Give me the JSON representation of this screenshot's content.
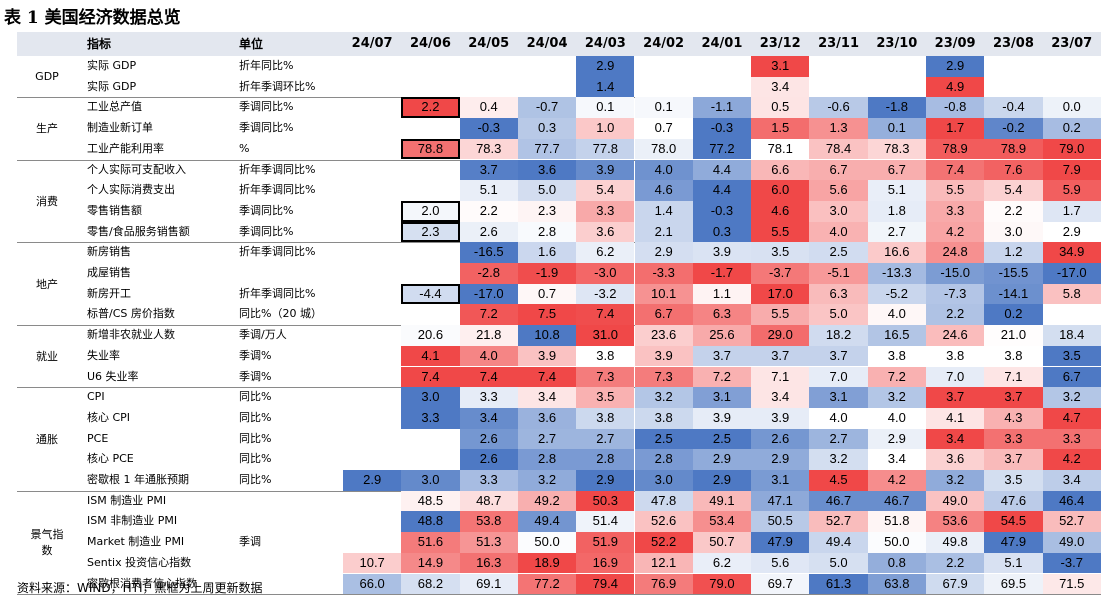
{
  "title": "表 1 美国经济数据总览",
  "header": {
    "indicator": "指标",
    "unit": "单位"
  },
  "periods": [
    "24/07",
    "24/06",
    "24/05",
    "24/04",
    "24/03",
    "24/02",
    "24/01",
    "23/12",
    "23/11",
    "23/10",
    "23/09",
    "23/08",
    "23/07"
  ],
  "source": "资料来源：WIND，HTI，黑框为上周更新数据",
  "groups": [
    {
      "label": "GDP",
      "rows": [
        {
          "name": "实际 GDP",
          "unit": "折年同比%",
          "values": [
            null,
            null,
            null,
            null,
            "2.9",
            null,
            null,
            "3.1",
            null,
            null,
            "2.9",
            null,
            null
          ]
        },
        {
          "name": "实际 GDP",
          "unit": "折年季调环比%",
          "values": [
            null,
            null,
            null,
            null,
            "1.4",
            null,
            null,
            "3.4",
            null,
            null,
            "4.9",
            null,
            null
          ]
        }
      ]
    },
    {
      "label": "生产",
      "rows": [
        {
          "name": "工业总产值",
          "unit": "季调同比%",
          "values": [
            null,
            "2.2",
            "0.4",
            "-0.7",
            "0.1",
            "0.1",
            "-1.1",
            "0.5",
            "-0.6",
            "-1.8",
            "-0.8",
            "-0.4",
            "0.0"
          ],
          "boxed": 1
        },
        {
          "name": "制造业新订单",
          "unit": "季调同比%",
          "values": [
            null,
            null,
            "-0.3",
            "0.3",
            "1.0",
            "0.7",
            "-0.3",
            "1.5",
            "1.3",
            "0.1",
            "1.7",
            "-0.2",
            "0.2"
          ]
        },
        {
          "name": "工业产能利用率",
          "unit": "%",
          "values": [
            null,
            "78.8",
            "78.3",
            "77.7",
            "77.8",
            "78.0",
            "77.2",
            "78.1",
            "78.4",
            "78.3",
            "78.9",
            "78.9",
            "79.0"
          ],
          "boxed": 1
        }
      ]
    },
    {
      "label": "消费",
      "rows": [
        {
          "name": "个人实际可支配收入",
          "unit": "折年季调同比%",
          "values": [
            null,
            null,
            "3.7",
            "3.6",
            "3.9",
            "4.0",
            "4.4",
            "6.6",
            "6.7",
            "6.7",
            "7.4",
            "7.6",
            "7.9"
          ]
        },
        {
          "name": "个人实际消费支出",
          "unit": "折年季调同比%",
          "values": [
            null,
            null,
            "5.1",
            "5.0",
            "5.4",
            "4.6",
            "4.4",
            "6.0",
            "5.6",
            "5.1",
            "5.5",
            "5.4",
            "5.9"
          ]
        },
        {
          "name": "零售销售额",
          "unit": "季调同比%",
          "values": [
            null,
            "2.0",
            "2.2",
            "2.3",
            "3.3",
            "1.4",
            "-0.3",
            "4.6",
            "3.0",
            "1.8",
            "3.3",
            "2.2",
            "1.7"
          ],
          "boxed": 1
        },
        {
          "name": "零售/食品服务销售额",
          "unit": "季调同比%",
          "values": [
            null,
            "2.3",
            "2.6",
            "2.8",
            "3.6",
            "2.1",
            "0.3",
            "5.5",
            "4.0",
            "2.7",
            "4.2",
            "3.0",
            "2.9"
          ],
          "boxed": 1
        }
      ]
    },
    {
      "label": "地产",
      "rows": [
        {
          "name": "新房销售",
          "unit": "折年季调同比%",
          "values": [
            null,
            null,
            "-16.5",
            "1.6",
            "6.2",
            "2.9",
            "3.9",
            "3.5",
            "2.5",
            "16.6",
            "24.8",
            "1.2",
            "34.9"
          ]
        },
        {
          "name": "成屋销售",
          "unit": "",
          "values": [
            null,
            null,
            "-2.8",
            "-1.9",
            "-3.0",
            "-3.3",
            "-1.7",
            "-3.7",
            "-5.1",
            "-13.3",
            "-15.0",
            "-15.5",
            "-17.0"
          ]
        },
        {
          "name": "新房开工",
          "unit": "折年季调同比%",
          "values": [
            null,
            "-4.4",
            "-17.0",
            "0.7",
            "-3.2",
            "10.1",
            "1.1",
            "17.0",
            "6.3",
            "-5.2",
            "-7.3",
            "-14.1",
            "5.8"
          ],
          "boxed": 1
        },
        {
          "name": "标普/CS 房价指数",
          "unit": "同比%（20 城）",
          "values": [
            null,
            null,
            "7.2",
            "7.5",
            "7.4",
            "6.7",
            "6.3",
            "5.5",
            "5.0",
            "4.0",
            "2.2",
            "0.2",
            null
          ]
        }
      ]
    },
    {
      "label": "就业",
      "rows": [
        {
          "name": "新增非农就业人数",
          "unit": "季调/万人",
          "values": [
            null,
            "20.6",
            "21.8",
            "10.8",
            "31.0",
            "23.6",
            "25.6",
            "29.0",
            "18.2",
            "16.5",
            "24.6",
            "21.0",
            "18.4"
          ]
        },
        {
          "name": "失业率",
          "unit": "季调%",
          "values": [
            null,
            "4.1",
            "4.0",
            "3.9",
            "3.8",
            "3.9",
            "3.7",
            "3.7",
            "3.7",
            "3.8",
            "3.8",
            "3.8",
            "3.5"
          ]
        },
        {
          "name": "U6 失业率",
          "unit": "季调%",
          "values": [
            null,
            "7.4",
            "7.4",
            "7.4",
            "7.3",
            "7.3",
            "7.2",
            "7.1",
            "7.0",
            "7.2",
            "7.0",
            "7.1",
            "6.7"
          ]
        }
      ]
    },
    {
      "label": "通胀",
      "rows": [
        {
          "name": "CPI",
          "unit": "同比%",
          "values": [
            null,
            "3.0",
            "3.3",
            "3.4",
            "3.5",
            "3.2",
            "3.1",
            "3.4",
            "3.1",
            "3.2",
            "3.7",
            "3.7",
            "3.2"
          ]
        },
        {
          "name": "核心 CPI",
          "unit": "同比%",
          "values": [
            null,
            "3.3",
            "3.4",
            "3.6",
            "3.8",
            "3.8",
            "3.9",
            "3.9",
            "4.0",
            "4.0",
            "4.1",
            "4.3",
            "4.7"
          ]
        },
        {
          "name": "PCE",
          "unit": "同比%",
          "values": [
            null,
            null,
            "2.6",
            "2.7",
            "2.7",
            "2.5",
            "2.5",
            "2.6",
            "2.7",
            "2.9",
            "3.4",
            "3.3",
            "3.3"
          ]
        },
        {
          "name": "核心 PCE",
          "unit": "同比%",
          "values": [
            null,
            null,
            "2.6",
            "2.8",
            "2.8",
            "2.8",
            "2.9",
            "2.9",
            "3.2",
            "3.4",
            "3.6",
            "3.7",
            "4.2"
          ]
        },
        {
          "name": "密歇根 1 年通胀预期",
          "unit": "同比%",
          "values": [
            "2.9",
            "3.0",
            "3.3",
            "3.2",
            "2.9",
            "3.0",
            "2.9",
            "3.1",
            "4.5",
            "4.2",
            "3.2",
            "3.5",
            "3.4"
          ]
        }
      ]
    },
    {
      "label": "景气指数",
      "label_lines": [
        "景气指",
        "数"
      ],
      "rows": [
        {
          "name": "ISM 制造业 PMI",
          "unit": "",
          "values": [
            null,
            "48.5",
            "48.7",
            "49.2",
            "50.3",
            "47.8",
            "49.1",
            "47.1",
            "46.7",
            "46.7",
            "49.0",
            "47.6",
            "46.4"
          ]
        },
        {
          "name": "ISM 非制造业 PMI",
          "unit": "",
          "values": [
            null,
            "48.8",
            "53.8",
            "49.4",
            "51.4",
            "52.6",
            "53.4",
            "50.5",
            "52.7",
            "51.8",
            "53.6",
            "54.5",
            "52.7"
          ]
        },
        {
          "name": "Market 制造业 PMI",
          "unit": "季调",
          "values": [
            null,
            "51.6",
            "51.3",
            "50.0",
            "51.9",
            "52.2",
            "50.7",
            "47.9",
            "49.4",
            "50.0",
            "49.8",
            "47.9",
            "49.0"
          ]
        },
        {
          "name": "Sentix 投资信心指数",
          "unit": "",
          "values": [
            "10.7",
            "14.9",
            "16.3",
            "18.9",
            "16.9",
            "12.1",
            "6.2",
            "5.6",
            "5.0",
            "0.8",
            "2.2",
            "5.1",
            "-3.7"
          ]
        },
        {
          "name": "密歇根消费者信心指数",
          "unit": "",
          "values": [
            "66.0",
            "68.2",
            "69.1",
            "77.2",
            "79.4",
            "76.9",
            "79.0",
            "69.7",
            "61.3",
            "63.8",
            "67.9",
            "69.5",
            "71.5"
          ]
        }
      ]
    }
  ]
}
